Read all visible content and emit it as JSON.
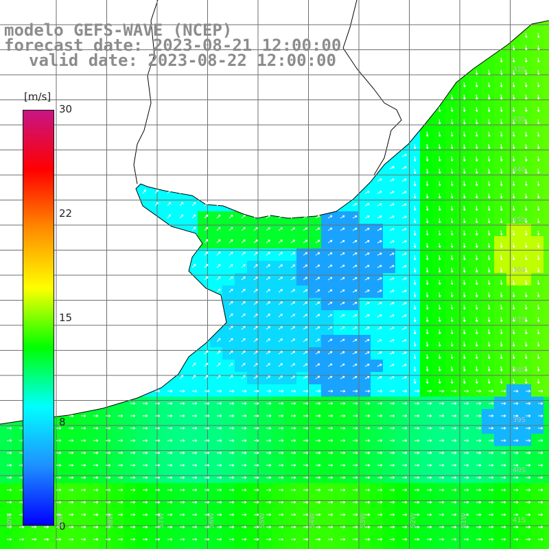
{
  "title": {
    "line1": "modelo GEFS-WAVE (NCEP)",
    "line2": "forecast date: 2023-08-21 12:00:00",
    "line3": "valid date: 2023-08-22 12:00:00"
  },
  "colorbar": {
    "unit": "[m/s]",
    "ticks": [
      "30",
      "22",
      "15",
      "8",
      "0"
    ],
    "tick_values": [
      30,
      22,
      15,
      8,
      0
    ],
    "range": [
      0,
      30
    ],
    "colors": [
      "#0000ff",
      "#1e90ff",
      "#00ffff",
      "#00ff00",
      "#ffff00",
      "#ff8c00",
      "#ff0000",
      "#c71585"
    ]
  },
  "map": {
    "lat_labels": [
      "32S",
      "33S",
      "34S",
      "35S",
      "36S",
      "37S",
      "38S",
      "39S",
      "40S",
      "41S"
    ],
    "lon_labels": [
      "60W",
      "59W",
      "58W",
      "57W",
      "56W",
      "55W",
      "54W",
      "53W",
      "52W",
      "51W"
    ],
    "land_color": "#ffffff",
    "coast_color": "#000000",
    "grid_color": "#7f7f7f",
    "arrow_color": "#ffffff"
  }
}
